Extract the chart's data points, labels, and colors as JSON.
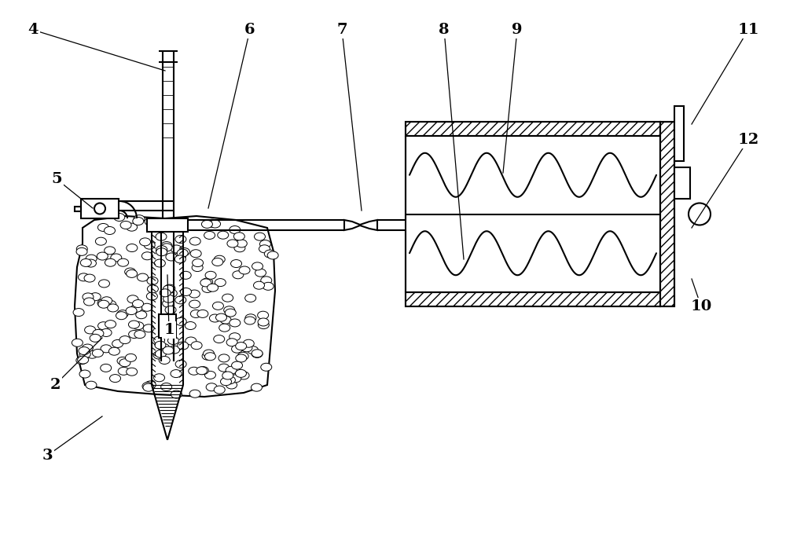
{
  "background_color": "#ffffff",
  "line_color": "#000000",
  "fig_width": 10.0,
  "fig_height": 6.81,
  "lw": 1.5
}
